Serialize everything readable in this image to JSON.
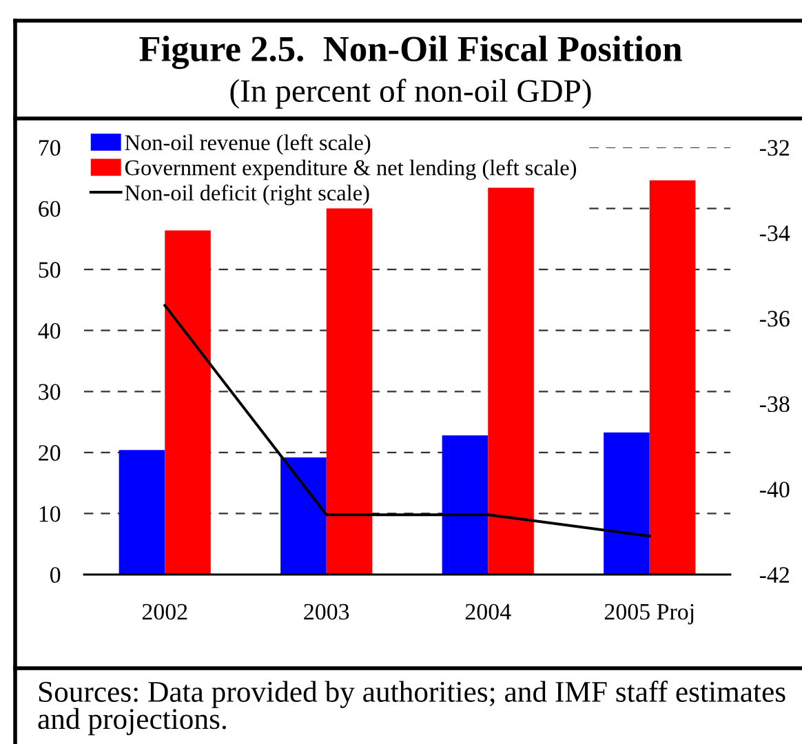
{
  "chart_data": {
    "type": "bar",
    "title": "Figure 2.5.  Non-Oil Fiscal Position",
    "subtitle": "(In percent of non-oil GDP)",
    "categories": [
      "2002",
      "2003",
      "2004",
      "2005 Proj"
    ],
    "series": [
      {
        "name": "Non-oil revenue (left scale)",
        "color": "#0000ff",
        "values": [
          20.4,
          19.2,
          22.8,
          23.3
        ]
      },
      {
        "name": "Government expenditure & net lending (left scale)",
        "color": "#ff0000",
        "values": [
          56.4,
          60.0,
          63.4,
          64.6
        ]
      },
      {
        "name": "Non-oil deficit (right scale)",
        "type": "line",
        "axis": "y2",
        "color": "#000000",
        "values": [
          -35.7,
          -40.6,
          -40.6,
          -41.1
        ]
      }
    ],
    "ylim": [
      0,
      70
    ],
    "yticks": [
      0,
      10,
      20,
      30,
      40,
      50,
      60,
      70
    ],
    "y2lim": [
      -42,
      -32
    ],
    "y2ticks": [
      -42,
      -40,
      -38,
      -36,
      -34,
      -32
    ],
    "grid": "y",
    "legend": "top left",
    "line_style": "solid",
    "annotations": [
      "Sources: Data provided by authorities; and IMF staff estimates and projections."
    ]
  }
}
